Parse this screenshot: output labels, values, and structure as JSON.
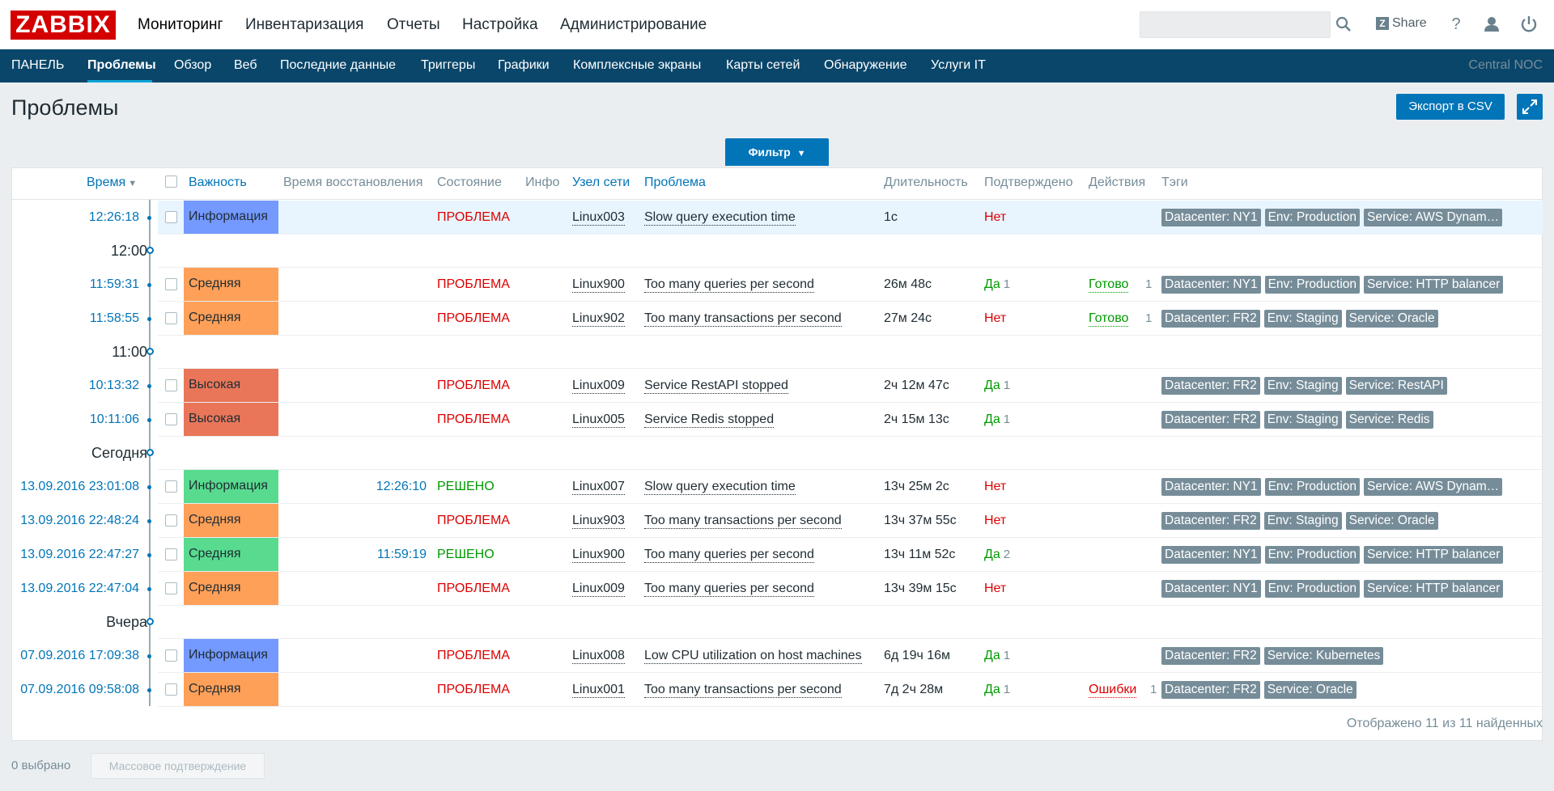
{
  "logo": "ZABBIX",
  "main_menu": [
    {
      "label": "Мониторинг"
    },
    {
      "label": "Инвентаризация"
    },
    {
      "label": "Отчеты"
    },
    {
      "label": "Настройка"
    },
    {
      "label": "Администрирование"
    }
  ],
  "search": {
    "placeholder": ""
  },
  "share_label": "Share",
  "share_icon": "Z",
  "help_label": "?",
  "sub_menu": [
    {
      "label": "ПАНЕЛЬ"
    },
    {
      "label": "Проблемы"
    },
    {
      "label": "Обзор"
    },
    {
      "label": "Веб"
    },
    {
      "label": "Последние данные"
    },
    {
      "label": "Триггеры"
    },
    {
      "label": "Графики"
    },
    {
      "label": "Комплексные экраны"
    },
    {
      "label": "Карты сетей"
    },
    {
      "label": "Обнаружение"
    },
    {
      "label": "Услуги IT"
    }
  ],
  "node_label": "Central NOC",
  "page_title": "Проблемы",
  "export_label": "Экспорт в CSV",
  "filter_label": "Фильтр",
  "columns": {
    "time": "Время",
    "severity": "Важность",
    "recovery": "Время восстановления",
    "status": "Состояние",
    "info": "Инфо",
    "host": "Узел сети",
    "problem": "Проблема",
    "duration": "Длительность",
    "ack": "Подтверждено",
    "actions": "Действия",
    "tags": "Тэги"
  },
  "groups": [
    "12:00",
    "11:00",
    "Сегодня",
    "Вчера"
  ],
  "rows": [
    {
      "time": "12:26:18",
      "severity": "Информация",
      "sev_color": "#7499ff",
      "recovery": "",
      "status": "ПРОБЛЕМА",
      "host": "Linux003",
      "problem": "Slow query execution time",
      "duration": "1с",
      "ack": "Нет",
      "ack_count": "",
      "action": "",
      "action_count": "",
      "tags": [
        "Datacenter: NY1",
        "Env: Production",
        "Service: AWS Dynam…"
      ]
    },
    {
      "time": "11:59:31",
      "severity": "Средняя",
      "sev_color": "#ffa059",
      "recovery": "",
      "status": "ПРОБЛЕМА",
      "host": "Linux900",
      "problem": "Too many queries per second",
      "duration": "26м 48с",
      "ack": "Да",
      "ack_count": "1",
      "action": "Готово",
      "action_count": "1",
      "tags": [
        "Datacenter: NY1",
        "Env: Production",
        "Service: HTTP balancer"
      ]
    },
    {
      "time": "11:58:55",
      "severity": "Средняя",
      "sev_color": "#ffa059",
      "recovery": "",
      "status": "ПРОБЛЕМА",
      "host": "Linux902",
      "problem": "Too many transactions per second",
      "duration": "27м 24с",
      "ack": "Нет",
      "ack_count": "",
      "action": "Готово",
      "action_count": "1",
      "tags": [
        "Datacenter: FR2",
        "Env: Staging",
        "Service: Oracle"
      ]
    },
    {
      "time": "10:13:32",
      "severity": "Высокая",
      "sev_color": "#e97659",
      "recovery": "",
      "status": "ПРОБЛЕМА",
      "host": "Linux009",
      "problem": "Service RestAPI stopped",
      "duration": "2ч 12м 47с",
      "ack": "Да",
      "ack_count": "1",
      "action": "",
      "action_count": "",
      "tags": [
        "Datacenter: FR2",
        "Env: Staging",
        "Service: RestAPI"
      ]
    },
    {
      "time": "10:11:06",
      "severity": "Высокая",
      "sev_color": "#e97659",
      "recovery": "",
      "status": "ПРОБЛЕМА",
      "host": "Linux005",
      "problem": "Service Redis stopped",
      "duration": "2ч 15м 13с",
      "ack": "Да",
      "ack_count": "1",
      "action": "",
      "action_count": "",
      "tags": [
        "Datacenter: FR2",
        "Env: Staging",
        "Service: Redis"
      ]
    },
    {
      "time": "13.09.2016 23:01:08",
      "severity": "Информация",
      "sev_color": "#59db8f",
      "recovery": "12:26:10",
      "status": "РЕШЕНО",
      "host": "Linux007",
      "problem": "Slow query execution time",
      "duration": "13ч 25м 2с",
      "ack": "Нет",
      "ack_count": "",
      "action": "",
      "action_count": "",
      "tags": [
        "Datacenter: NY1",
        "Env: Production",
        "Service: AWS Dynam…"
      ]
    },
    {
      "time": "13.09.2016 22:48:24",
      "severity": "Средняя",
      "sev_color": "#ffa059",
      "recovery": "",
      "status": "ПРОБЛЕМА",
      "host": "Linux903",
      "problem": "Too many transactions per second",
      "duration": "13ч 37м 55с",
      "ack": "Нет",
      "ack_count": "",
      "action": "",
      "action_count": "",
      "tags": [
        "Datacenter: FR2",
        "Env: Staging",
        "Service: Oracle"
      ]
    },
    {
      "time": "13.09.2016 22:47:27",
      "severity": "Средняя",
      "sev_color": "#59db8f",
      "recovery": "11:59:19",
      "status": "РЕШЕНО",
      "host": "Linux900",
      "problem": "Too many queries per second",
      "duration": "13ч 11м 52с",
      "ack": "Да",
      "ack_count": "2",
      "action": "",
      "action_count": "",
      "tags": [
        "Datacenter: NY1",
        "Env: Production",
        "Service: HTTP balancer"
      ]
    },
    {
      "time": "13.09.2016 22:47:04",
      "severity": "Средняя",
      "sev_color": "#ffa059",
      "recovery": "",
      "status": "ПРОБЛЕМА",
      "host": "Linux009",
      "problem": "Too many queries per second",
      "duration": "13ч 39м 15с",
      "ack": "Нет",
      "ack_count": "",
      "action": "",
      "action_count": "",
      "tags": [
        "Datacenter: NY1",
        "Env: Production",
        "Service: HTTP balancer"
      ]
    },
    {
      "time": "07.09.2016 17:09:38",
      "severity": "Информация",
      "sev_color": "#7499ff",
      "recovery": "",
      "status": "ПРОБЛЕМА",
      "host": "Linux008",
      "problem": "Low CPU utilization on host machines",
      "duration": "6д 19ч 16м",
      "ack": "Да",
      "ack_count": "1",
      "action": "",
      "action_count": "",
      "tags": [
        "Datacenter: FR2",
        "Service: Kubernetes"
      ]
    },
    {
      "time": "07.09.2016 09:58:08",
      "severity": "Средняя",
      "sev_color": "#ffa059",
      "recovery": "",
      "status": "ПРОБЛЕМА",
      "host": "Linux001",
      "problem": "Too many transactions per second",
      "duration": "7д 2ч 28м",
      "ack": "Да",
      "ack_count": "1",
      "action": "Ошибки",
      "action_count": "1",
      "tags": [
        "Datacenter: FR2",
        "Service: Oracle"
      ]
    }
  ],
  "summary": "Отображено 11 из 11 найденных",
  "selected_count": "0 выбрано",
  "mass_ack_label": "Массовое подтверждение"
}
